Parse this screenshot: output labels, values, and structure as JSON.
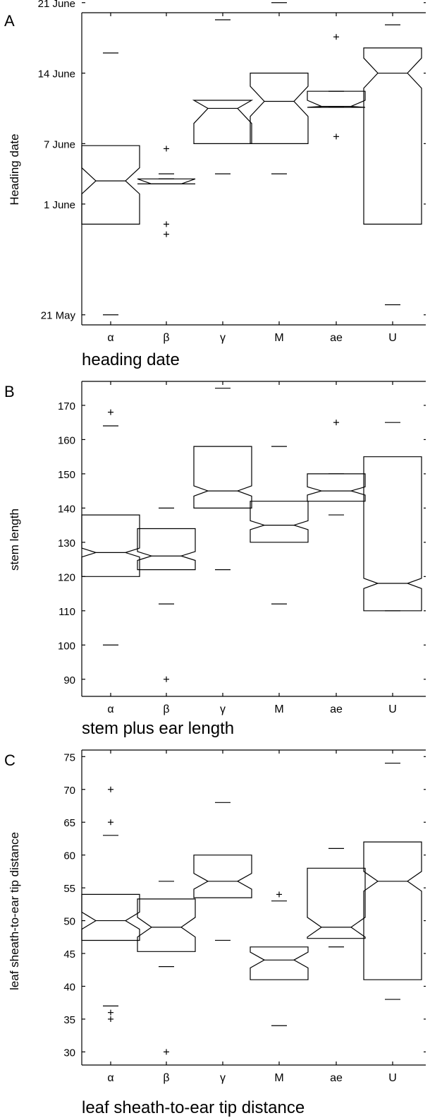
{
  "chart_data": [
    {
      "panel": "A",
      "type": "boxplot",
      "subtitle": "heading date",
      "ylabel": "Heading date",
      "y_unit": "days after 21 May",
      "ylim": [
        -1,
        30
      ],
      "yticks": [
        {
          "value": 0,
          "label": "21 May"
        },
        {
          "value": 11,
          "label": "1 June"
        },
        {
          "value": 17,
          "label": "7 June"
        },
        {
          "value": 24,
          "label": "14 June"
        },
        {
          "value": 31,
          "label": "21 June"
        }
      ],
      "categories": [
        "α",
        "β",
        "γ",
        "M",
        "ae",
        "U"
      ],
      "boxes": [
        {
          "q1": 9,
          "median": 13.3,
          "q3": 16.8,
          "notch": 1.3,
          "wlo": 0,
          "whi": 26,
          "outliers": []
        },
        {
          "q1": 13,
          "median": 13,
          "q3": 13.5,
          "notch": 0.5,
          "wlo": 13.5,
          "whi": 14,
          "outliers": [
            16.5,
            9,
            8
          ]
        },
        {
          "q1": 17,
          "median": 20.5,
          "q3": 21.3,
          "notch": 1.5,
          "wlo": 14,
          "whi": 29.3,
          "outliers": []
        },
        {
          "q1": 17,
          "median": 21.2,
          "q3": 24,
          "notch": 1.5,
          "wlo": 14,
          "whi": 31,
          "outliers": []
        },
        {
          "q1": 20.6,
          "median": 20.7,
          "q3": 22.2,
          "notch": 0.6,
          "wlo": 20.7,
          "whi": 22.2,
          "outliers": [
            27.6,
            17.7
          ]
        },
        {
          "q1": 9,
          "median": 24,
          "q3": 26.5,
          "notch": 1.5,
          "wlo": 1,
          "whi": 28.8,
          "outliers": []
        }
      ]
    },
    {
      "panel": "B",
      "type": "boxplot",
      "subtitle": "stem plus ear length",
      "ylabel": "stem length",
      "ylim": [
        85,
        177
      ],
      "yticks": [
        {
          "value": 90,
          "label": "90"
        },
        {
          "value": 100,
          "label": "100"
        },
        {
          "value": 110,
          "label": "110"
        },
        {
          "value": 120,
          "label": "120"
        },
        {
          "value": 130,
          "label": "130"
        },
        {
          "value": 140,
          "label": "140"
        },
        {
          "value": 150,
          "label": "150"
        },
        {
          "value": 160,
          "label": "160"
        },
        {
          "value": 170,
          "label": "170"
        }
      ],
      "categories": [
        "α",
        "β",
        "γ",
        "M",
        "ae",
        "U"
      ],
      "boxes": [
        {
          "q1": 120,
          "median": 127,
          "q3": 138,
          "notch": 1.3,
          "wlo": 100,
          "whi": 164,
          "outliers": [
            168
          ]
        },
        {
          "q1": 122,
          "median": 126,
          "q3": 134,
          "notch": 1.3,
          "wlo": 112,
          "whi": 140,
          "outliers": [
            90
          ]
        },
        {
          "q1": 140,
          "median": 145,
          "q3": 158,
          "notch": 1.5,
          "wlo": 122,
          "whi": 175,
          "outliers": []
        },
        {
          "q1": 130,
          "median": 135,
          "q3": 142,
          "notch": 1.3,
          "wlo": 112,
          "whi": 158,
          "outliers": []
        },
        {
          "q1": 142,
          "median": 145,
          "q3": 150,
          "notch": 1.2,
          "wlo": 138,
          "whi": 150,
          "outliers": [
            165
          ]
        },
        {
          "q1": 110,
          "median": 118,
          "q3": 155,
          "notch": 1.5,
          "wlo": 110,
          "whi": 165,
          "outliers": []
        }
      ]
    },
    {
      "panel": "C",
      "type": "boxplot",
      "subtitle": "leaf sheath-to-ear tip distance",
      "ylabel": "leaf sheath-to-ear tip distance",
      "ylim": [
        28,
        76
      ],
      "yticks": [
        {
          "value": 30,
          "label": "30"
        },
        {
          "value": 35,
          "label": "35"
        },
        {
          "value": 40,
          "label": "40"
        },
        {
          "value": 45,
          "label": "45"
        },
        {
          "value": 50,
          "label": "50"
        },
        {
          "value": 55,
          "label": "55"
        },
        {
          "value": 60,
          "label": "60"
        },
        {
          "value": 65,
          "label": "65"
        },
        {
          "value": 70,
          "label": "70"
        },
        {
          "value": 75,
          "label": "75"
        }
      ],
      "categories": [
        "α",
        "β",
        "γ",
        "M",
        "ae",
        "U"
      ],
      "boxes": [
        {
          "q1": 47,
          "median": 50,
          "q3": 54,
          "notch": 1.3,
          "wlo": 37,
          "whi": 63,
          "outliers": [
            70,
            65,
            36,
            35
          ]
        },
        {
          "q1": 45.3,
          "median": 49,
          "q3": 53.3,
          "notch": 1.5,
          "wlo": 43,
          "whi": 56,
          "outliers": [
            30
          ]
        },
        {
          "q1": 53.5,
          "median": 56,
          "q3": 60,
          "notch": 1.2,
          "wlo": 47,
          "whi": 68,
          "outliers": []
        },
        {
          "q1": 41,
          "median": 44,
          "q3": 46,
          "notch": 1.2,
          "wlo": 34,
          "whi": 53,
          "outliers": [
            54
          ]
        },
        {
          "q1": 47.3,
          "median": 49,
          "q3": 58,
          "notch": 1.5,
          "wlo": 46,
          "whi": 61,
          "outliers": []
        },
        {
          "q1": 41,
          "median": 56,
          "q3": 62,
          "notch": 1.5,
          "wlo": 38,
          "whi": 74,
          "outliers": []
        }
      ]
    }
  ]
}
